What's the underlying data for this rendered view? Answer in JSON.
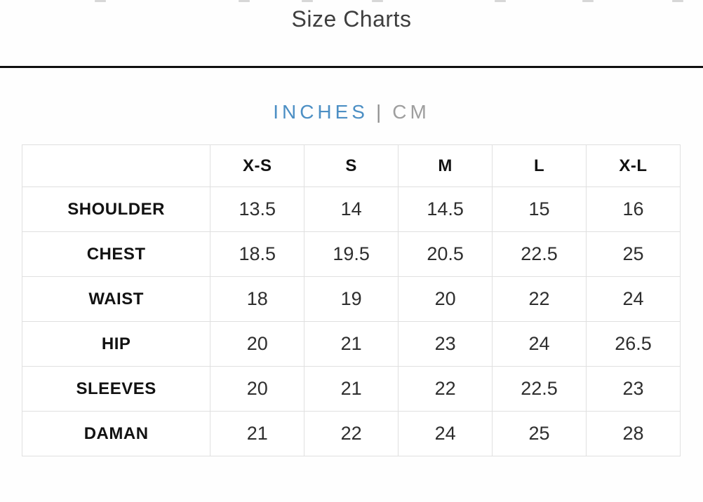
{
  "header": {
    "title": "Size Charts"
  },
  "unit_toggle": {
    "separator": "|",
    "options": [
      {
        "label": "INCHES",
        "active": true
      },
      {
        "label": "CM",
        "active": false
      }
    ]
  },
  "size_chart": {
    "columns": [
      "",
      "X-S",
      "S",
      "M",
      "L",
      "X-L"
    ],
    "rows": [
      {
        "label": "SHOULDER",
        "values": [
          "13.5",
          "14",
          "14.5",
          "15",
          "16"
        ]
      },
      {
        "label": "CHEST",
        "values": [
          "18.5",
          "19.5",
          "20.5",
          "22.5",
          "25"
        ]
      },
      {
        "label": "WAIST",
        "values": [
          "18",
          "19",
          "20",
          "22",
          "24"
        ]
      },
      {
        "label": "HIP",
        "values": [
          "20",
          "21",
          "23",
          "24",
          "26.5"
        ]
      },
      {
        "label": "SLEEVES",
        "values": [
          "20",
          "21",
          "22",
          "22.5",
          "23"
        ]
      },
      {
        "label": "DAMAN",
        "values": [
          "21",
          "22",
          "24",
          "25",
          "28"
        ]
      }
    ]
  },
  "colors": {
    "accent_blue": "#4c8fc4",
    "inactive_gray": "#9e9e9e",
    "divider_black": "#101010",
    "table_border": "#e0e0e0"
  }
}
